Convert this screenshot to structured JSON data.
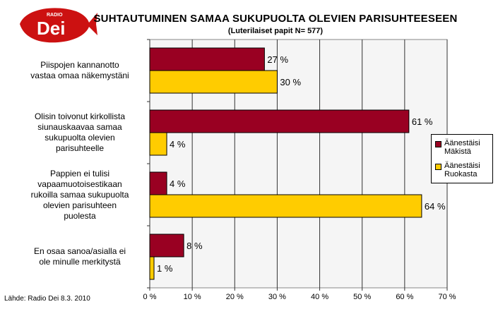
{
  "logo": {
    "small_text": "RADIO",
    "brand": "Dei"
  },
  "title": "SUHTAUTUMINEN SAMAA SUKUPUOLTA OLEVIEN PARISUHTEESEEN",
  "subtitle": "(Luterilaiset papit N= 577)",
  "source": "Lähde: Radio Dei 8.3. 2010",
  "colors": {
    "makista": "#990022",
    "ruokasta": "#FFCC00",
    "plot_bg": "#F5F5F5"
  },
  "category_lines": [
    [
      "Piispojen kannanotto",
      "vastaa omaa näkemystäni"
    ],
    [
      "Olisin toivonut kirkollista",
      "siunauskaavaa samaa",
      "sukupuolta olevien",
      "parisuhteelle"
    ],
    [
      "Pappien ei tulisi",
      "vapaamuotoisestikaan",
      "rukoilla samaa sukupuolta",
      "olevien parisuhteen",
      "puolesta"
    ],
    [
      "En osaa sanoa/asialla ei",
      "ole minulle merkitystä"
    ]
  ],
  "chart_data": {
    "type": "bar",
    "orientation": "horizontal",
    "categories": [
      "Piispojen kannanotto vastaa omaa näkemystäni",
      "Olisin toivonut kirkollista siunauskaavaa samaa sukupuolta olevien parisuhteelle",
      "Pappien ei tulisi vapaamuotoisestikaan rukoilla samaa sukupuolta olevien parisuhteen puolesta",
      "En osaa sanoa/asialla ei ole minulle merkitystä"
    ],
    "series": [
      {
        "name": "Äänestäisi Mäkistä",
        "values": [
          27,
          61,
          4,
          8
        ],
        "labels": [
          "27 %",
          "61 %",
          "4 %",
          "8 %"
        ],
        "color": "#990022"
      },
      {
        "name": "Äänestäisi Ruokasta",
        "values": [
          30,
          4,
          64,
          1
        ],
        "labels": [
          "30 %",
          "4 %",
          "64 %",
          "1 %"
        ],
        "color": "#FFCC00"
      }
    ],
    "xlim": [
      0,
      70
    ],
    "xticks": [
      "0 %",
      "10 %",
      "20 %",
      "30 %",
      "40 %",
      "50 %",
      "60 %",
      "70 %"
    ],
    "grid": true,
    "legend_position": "right"
  },
  "legend": [
    {
      "line1": "Äänestäisi",
      "line2": "Mäkistä"
    },
    {
      "line1": "Äänestäisi",
      "line2": "Ruokasta"
    }
  ]
}
